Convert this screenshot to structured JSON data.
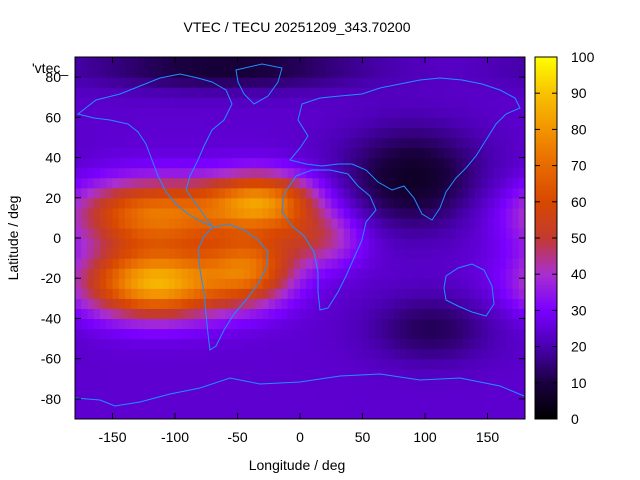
{
  "chart_data": {
    "type": "heatmap",
    "title": "VTEC / TECU 20251209_343.70200",
    "xlabel": "Longitude / deg",
    "ylabel": "Latitude / deg",
    "series_label": "'vtec_",
    "xlim": [
      -180,
      180
    ],
    "ylim": [
      -90,
      90
    ],
    "xticks": [
      -150,
      -100,
      -50,
      0,
      50,
      100,
      150
    ],
    "yticks": [
      -80,
      -60,
      -40,
      -20,
      0,
      20,
      40,
      60,
      80
    ],
    "colorbar": {
      "range": [
        0,
        100
      ],
      "ticks": [
        0,
        10,
        20,
        30,
        40,
        50,
        60,
        70,
        80,
        90,
        100
      ]
    },
    "background_level": 24,
    "features": [
      {
        "name": "equatorial-anomaly-north",
        "lon": -115,
        "lat": 12,
        "peak": 72
      },
      {
        "name": "equatorial-anomaly-south",
        "lon": -115,
        "lat": -22,
        "peak": 86
      },
      {
        "name": "atlantic-north-crest",
        "lon": -30,
        "lat": 18,
        "peak": 74
      },
      {
        "name": "atlantic-south-crest",
        "lon": -40,
        "lat": -15,
        "peak": 64
      },
      {
        "name": "africa-extension",
        "lon": 15,
        "lat": 0,
        "peak": 45
      },
      {
        "name": "asia-night-low",
        "lon": 90,
        "lat": 30,
        "peak": 6
      },
      {
        "name": "south-indian-low",
        "lon": 105,
        "lat": -45,
        "peak": 12
      },
      {
        "name": "arctic-low",
        "lon": -60,
        "lat": 85,
        "peak": 8
      }
    ]
  }
}
